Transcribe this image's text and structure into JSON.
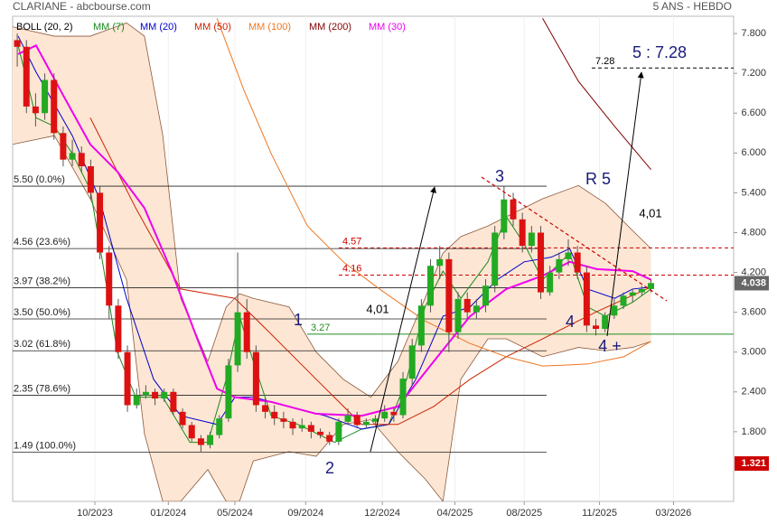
{
  "chart_data": {
    "type": "candlestick",
    "title": "CLARIANE - abcbourse.com",
    "subtitle": "5 ANS - HEBDO",
    "xlim": [
      0,
      157
    ],
    "ylim": [
      0.75,
      8.06
    ],
    "xticks": [
      {
        "value": 17.9,
        "label": "10/2023"
      },
      {
        "value": 33.9,
        "label": "01/2024"
      },
      {
        "value": 48.4,
        "label": "05/2024"
      },
      {
        "value": 63.8,
        "label": "09/2024"
      },
      {
        "value": 80.5,
        "label": "12/2024"
      },
      {
        "value": 96.3,
        "label": "04/2025"
      },
      {
        "value": 111.4,
        "label": "08/2025"
      },
      {
        "value": 127.8,
        "label": "11/2025"
      },
      {
        "value": 143.9,
        "label": "03/2026"
      }
    ],
    "yticks": [
      {
        "value": 7.8,
        "label": "7.800"
      },
      {
        "value": 7.2,
        "label": "7.200"
      },
      {
        "value": 6.6,
        "label": "6.600"
      },
      {
        "value": 6,
        "label": "6.000"
      },
      {
        "value": 5.4,
        "label": "5.400"
      },
      {
        "value": 4.8,
        "label": "4.800"
      },
      {
        "value": 4.2,
        "label": "4.200"
      },
      {
        "value": 3.6,
        "label": "3.600"
      },
      {
        "value": 3,
        "label": "3.000"
      },
      {
        "value": 2.4,
        "label": "2.400"
      },
      {
        "value": 1.8,
        "label": "1.800"
      }
    ],
    "candles": {
      "up_color": "#22aa22",
      "down_color": "#dd1111",
      "x": [
        1,
        3,
        5,
        7,
        9,
        11,
        13,
        15,
        17,
        19,
        21,
        23,
        25,
        27,
        29,
        31,
        33,
        35,
        37,
        39,
        41,
        43,
        45,
        47,
        49,
        51,
        53,
        55,
        57,
        59,
        61,
        63,
        65,
        67,
        69,
        71,
        73,
        75,
        77,
        79,
        81,
        83,
        85,
        87,
        89,
        91,
        93,
        95,
        97,
        99,
        101,
        103,
        105,
        107,
        109,
        111,
        113,
        115,
        117,
        119,
        121,
        123,
        125,
        127,
        129,
        131,
        133,
        135,
        137,
        139
      ],
      "ohlc": [
        [
          7.7,
          7.8,
          7.3,
          7.6
        ],
        [
          7.6,
          7.7,
          6.6,
          6.7
        ],
        [
          6.7,
          6.9,
          6.4,
          6.6
        ],
        [
          6.6,
          7.2,
          6.5,
          7.1
        ],
        [
          7.1,
          7.2,
          6.2,
          6.3
        ],
        [
          6.3,
          6.4,
          5.8,
          5.9
        ],
        [
          5.9,
          6.2,
          5.8,
          6.0
        ],
        [
          6.0,
          6.1,
          5.7,
          5.8
        ],
        [
          5.8,
          5.9,
          5.3,
          5.4
        ],
        [
          5.4,
          5.5,
          4.4,
          4.5
        ],
        [
          4.5,
          4.6,
          3.5,
          3.7
        ],
        [
          3.7,
          3.8,
          2.9,
          3.0
        ],
        [
          3.0,
          3.1,
          2.1,
          2.2
        ],
        [
          2.2,
          2.45,
          2.15,
          2.35
        ],
        [
          2.35,
          2.5,
          2.3,
          2.4
        ],
        [
          2.4,
          2.45,
          2.2,
          2.3
        ],
        [
          2.3,
          2.45,
          2.25,
          2.4
        ],
        [
          2.4,
          2.45,
          2.05,
          2.1
        ],
        [
          2.1,
          2.15,
          1.85,
          1.9
        ],
        [
          1.9,
          1.95,
          1.65,
          1.7
        ],
        [
          1.7,
          1.75,
          1.5,
          1.6
        ],
        [
          1.6,
          1.8,
          1.55,
          1.75
        ],
        [
          1.75,
          2.05,
          1.7,
          2.0
        ],
        [
          2.0,
          2.9,
          1.95,
          2.8
        ],
        [
          2.8,
          4.5,
          2.7,
          3.6
        ],
        [
          3.6,
          3.8,
          2.9,
          3.0
        ],
        [
          3.0,
          3.1,
          2.1,
          2.2
        ],
        [
          2.2,
          2.3,
          2.0,
          2.1
        ],
        [
          2.1,
          2.2,
          1.9,
          2.0
        ],
        [
          2.0,
          2.1,
          1.85,
          1.95
        ],
        [
          1.95,
          2.0,
          1.75,
          1.85
        ],
        [
          1.85,
          2.0,
          1.8,
          1.9
        ],
        [
          1.9,
          1.95,
          1.7,
          1.8
        ],
        [
          1.8,
          1.85,
          1.7,
          1.75
        ],
        [
          1.75,
          1.8,
          1.6,
          1.65
        ],
        [
          1.65,
          2.0,
          1.6,
          1.95
        ],
        [
          1.95,
          2.15,
          1.9,
          2.05
        ],
        [
          2.05,
          2.1,
          1.85,
          1.9
        ],
        [
          1.9,
          2.0,
          1.85,
          1.95
        ],
        [
          1.95,
          2.05,
          1.9,
          2.0
        ],
        [
          2.0,
          2.2,
          1.95,
          2.1
        ],
        [
          2.1,
          2.15,
          1.95,
          2.05
        ],
        [
          2.05,
          2.7,
          2.0,
          2.6
        ],
        [
          2.6,
          3.2,
          2.5,
          3.1
        ],
        [
          3.1,
          3.8,
          3.0,
          3.7
        ],
        [
          3.7,
          4.4,
          3.6,
          4.3
        ],
        [
          4.3,
          4.6,
          4.1,
          4.4
        ],
        [
          4.4,
          4.5,
          3.0,
          3.3
        ],
        [
          3.3,
          3.9,
          3.2,
          3.8
        ],
        [
          3.8,
          3.9,
          3.5,
          3.6
        ],
        [
          3.6,
          3.8,
          3.5,
          3.7
        ],
        [
          3.7,
          4.1,
          3.6,
          4.0
        ],
        [
          4.0,
          4.9,
          3.9,
          4.8
        ],
        [
          4.8,
          5.5,
          4.7,
          5.3
        ],
        [
          5.3,
          5.4,
          4.9,
          5.0
        ],
        [
          5.0,
          5.1,
          4.5,
          4.6
        ],
        [
          4.6,
          4.9,
          4.5,
          4.8
        ],
        [
          4.8,
          4.9,
          3.8,
          3.9
        ],
        [
          3.9,
          4.3,
          3.85,
          4.2
        ],
        [
          4.2,
          4.5,
          4.1,
          4.4
        ],
        [
          4.4,
          4.7,
          4.3,
          4.5
        ],
        [
          4.5,
          4.6,
          4.1,
          4.2
        ],
        [
          4.2,
          4.3,
          3.3,
          3.4
        ],
        [
          3.4,
          3.5,
          3.25,
          3.35
        ],
        [
          3.35,
          3.6,
          3.3,
          3.55
        ],
        [
          3.55,
          3.8,
          3.5,
          3.7
        ],
        [
          3.7,
          3.9,
          3.65,
          3.85
        ],
        [
          3.85,
          3.95,
          3.75,
          3.9
        ],
        [
          3.9,
          4.0,
          3.85,
          3.95
        ],
        [
          3.95,
          4.1,
          3.9,
          4.04
        ]
      ]
    },
    "bollinger": {
      "name": "BOLL (20, 2)",
      "color": "#8b5a3c",
      "fill": "#fde6d4",
      "x": [
        0,
        9.1,
        16.9,
        24.8,
        28.7,
        32.7,
        36.6,
        42.5,
        46.5,
        49.4,
        52.4,
        60.2,
        66.1,
        72,
        78,
        83.9,
        89.8,
        93.7,
        97.6,
        103.5,
        107.5,
        115.4,
        123.2,
        129.1,
        135,
        139
      ],
      "upper": [
        7.9,
        7.76,
        7.76,
        7.96,
        7.76,
        6.26,
        3.81,
        2.86,
        3.68,
        3.88,
        3.81,
        3.68,
        3.0,
        2.59,
        2.32,
        2.86,
        3.81,
        4.49,
        4.74,
        4.9,
        5.04,
        5.31,
        5.51,
        5.24,
        4.83,
        4.56
      ],
      "lower": [
        6.13,
        6.26,
        5.31,
        4.09,
        1.77,
        0.75,
        0.75,
        1.23,
        0.75,
        0.75,
        1.36,
        1.5,
        1.43,
        1.91,
        1.98,
        1.5,
        1.09,
        0.75,
        2.59,
        3.2,
        3.2,
        2.93,
        3.07,
        3.02,
        3.07,
        3.16
      ]
    },
    "series": [
      {
        "name": "MM (7)",
        "color": "#1a8a1a",
        "x": [
          1.2,
          5.1,
          9.1,
          13,
          16.9,
          19.9,
          22.8,
          26.8,
          32.7,
          38.6,
          42.5,
          46.5,
          49.4,
          52.4,
          56.3,
          62.2,
          70.1,
          76,
          81.9,
          85.8,
          89.8,
          93.7,
          97.6,
          103.5,
          107.5,
          111.4,
          115.4,
          121.3,
          125.2,
          129.1,
          135,
          139
        ],
        "values": [
          7.62,
          6.53,
          6.4,
          5.99,
          5.45,
          4.22,
          3.0,
          2.32,
          2.32,
          1.64,
          1.64,
          2.59,
          3.54,
          2.86,
          2.04,
          1.91,
          1.64,
          1.84,
          1.91,
          2.59,
          3.68,
          4.22,
          3.81,
          4.36,
          5.04,
          4.63,
          4.09,
          4.49,
          3.68,
          3.54,
          3.75,
          3.95
        ]
      },
      {
        "name": "MM (20)",
        "color": "#0000cc",
        "x": [
          1.2,
          5.1,
          13,
          18.9,
          24.8,
          30.7,
          36.6,
          44.5,
          48.4,
          52.4,
          60.2,
          68.1,
          76,
          81.9,
          87.8,
          93.7,
          99.6,
          105.5,
          111.4,
          117.3,
          121.3,
          125.2,
          131.1,
          135,
          139
        ],
        "values": [
          7.76,
          7.22,
          6.26,
          5.31,
          3.81,
          2.59,
          2.04,
          1.91,
          2.32,
          2.32,
          2.18,
          2.04,
          1.84,
          1.91,
          2.59,
          3.54,
          3.68,
          4.09,
          4.36,
          4.43,
          4.56,
          3.95,
          3.81,
          3.95,
          3.98
        ]
      },
      {
        "name": "MM (50)",
        "color": "#cc2200",
        "x": [
          16.9,
          26.8,
          36.6,
          48.4,
          56.3,
          66.1,
          76,
          83.9,
          91.7,
          99.6,
          107.5,
          115.4,
          127.2,
          139
        ],
        "values": [
          6.53,
          5.17,
          3.95,
          3.81,
          3.27,
          2.59,
          1.91,
          1.91,
          2.18,
          2.59,
          2.93,
          3.2,
          3.61,
          3.98
        ]
      },
      {
        "name": "MM (100)",
        "color": "#ee7722",
        "x": [
          44.5,
          50.4,
          56.3,
          64.2,
          72,
          79.9,
          89.8,
          99.6,
          107.5,
          115.4,
          125.2,
          133.1,
          139
        ],
        "values": [
          8.03,
          6.94,
          5.99,
          4.9,
          4.36,
          3.95,
          3.47,
          3.13,
          2.93,
          2.79,
          2.82,
          2.93,
          3.16
        ]
      },
      {
        "name": "MM (200)",
        "color": "#800000",
        "x": [
          115.4,
          123.2,
          131.1,
          139
        ],
        "values": [
          8.03,
          7.08,
          6.4,
          5.75
        ]
      },
      {
        "name": "MM (30)",
        "color": "#ee00ee",
        "x": [
          1.2,
          5.1,
          11,
          16.9,
          22.8,
          28.7,
          34.6,
          40.6,
          44.5,
          48.4,
          56.3,
          66.1,
          76,
          83.9,
          91.7,
          99.6,
          107.5,
          115.4,
          121.3,
          127.2,
          135,
          139
        ],
        "values": [
          7.49,
          7.62,
          6.87,
          6.13,
          5.72,
          5.17,
          4.22,
          3.13,
          2.45,
          2.32,
          2.25,
          2.07,
          2.04,
          2.18,
          2.86,
          3.54,
          3.95,
          4.15,
          4.36,
          4.25,
          4.22,
          4.09
        ]
      }
    ],
    "fib_levels": [
      {
        "value": 5.5,
        "label": "5.50  (0.0%)"
      },
      {
        "value": 4.56,
        "label": "4.56  (23.6%)"
      },
      {
        "value": 3.97,
        "label": "3.97  (38.2%)"
      },
      {
        "value": 3.5,
        "label": "3.50  (50.0%)"
      },
      {
        "value": 3.02,
        "label": "3.02  (61.8%)"
      },
      {
        "value": 2.35,
        "label": "2.35  (78.6%)"
      },
      {
        "value": 1.49,
        "label": "1.49  (100.0%)"
      }
    ],
    "levels": [
      {
        "value": 4.57,
        "color": "#cc0000"
      },
      {
        "value": 4.16,
        "color": "#cc0000"
      },
      {
        "value": 3.27,
        "color": "#228b22"
      },
      {
        "value": 7.28,
        "color": "#000000"
      }
    ],
    "target_label": "5 : 7.28",
    "annotations": [
      "3",
      "R 5",
      "4,01",
      "1",
      "4,01",
      "2",
      "4",
      "4 +"
    ],
    "price_markers": [
      {
        "value": 4.038,
        "color": "#666666"
      },
      {
        "value": 1.321,
        "color": "#cc0000"
      }
    ]
  }
}
